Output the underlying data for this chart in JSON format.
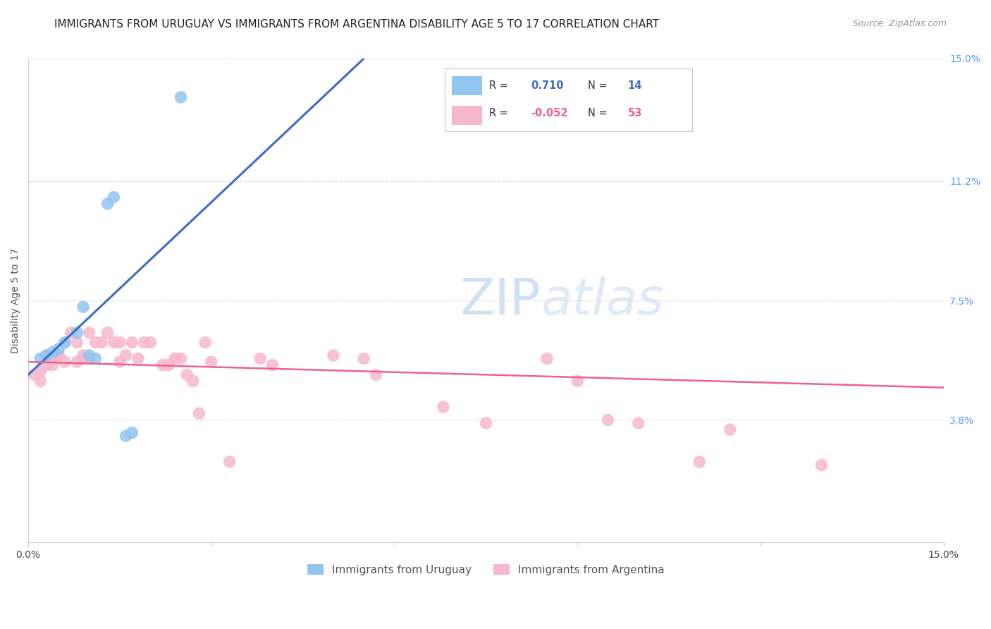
{
  "title": "IMMIGRANTS FROM URUGUAY VS IMMIGRANTS FROM ARGENTINA DISABILITY AGE 5 TO 17 CORRELATION CHART",
  "source": "Source: ZipAtlas.com",
  "ylabel": "Disability Age 5 to 17",
  "xlim": [
    0.0,
    0.15
  ],
  "ylim": [
    0.0,
    0.15
  ],
  "y_tick_labels_right": [
    "15.0%",
    "11.2%",
    "7.5%",
    "3.8%"
  ],
  "y_tick_positions_right": [
    0.15,
    0.112,
    0.075,
    0.038
  ],
  "uruguay_color": "#92C5F0",
  "argentina_color": "#F7B8CC",
  "trend_uruguay_color": "#3A6BC9",
  "trend_argentina_color": "#F06090",
  "background_color": "#ffffff",
  "grid_color": "#DDDDDD",
  "uruguay_x": [
    0.002,
    0.003,
    0.004,
    0.005,
    0.006,
    0.008,
    0.009,
    0.01,
    0.011,
    0.013,
    0.014,
    0.016,
    0.017,
    0.025
  ],
  "uruguay_y": [
    0.057,
    0.058,
    0.059,
    0.06,
    0.062,
    0.065,
    0.073,
    0.058,
    0.057,
    0.105,
    0.107,
    0.033,
    0.034,
    0.138
  ],
  "argentina_x": [
    0.001,
    0.002,
    0.002,
    0.003,
    0.003,
    0.004,
    0.004,
    0.005,
    0.005,
    0.006,
    0.006,
    0.007,
    0.008,
    0.008,
    0.009,
    0.009,
    0.01,
    0.01,
    0.011,
    0.012,
    0.013,
    0.014,
    0.015,
    0.015,
    0.016,
    0.017,
    0.018,
    0.019,
    0.02,
    0.022,
    0.023,
    0.024,
    0.025,
    0.026,
    0.027,
    0.028,
    0.029,
    0.03,
    0.033,
    0.038,
    0.04,
    0.05,
    0.055,
    0.057,
    0.068,
    0.075,
    0.085,
    0.09,
    0.095,
    0.1,
    0.11,
    0.115,
    0.13
  ],
  "argentina_y": [
    0.052,
    0.05,
    0.053,
    0.055,
    0.058,
    0.055,
    0.057,
    0.057,
    0.058,
    0.056,
    0.062,
    0.065,
    0.056,
    0.062,
    0.057,
    0.058,
    0.065,
    0.057,
    0.062,
    0.062,
    0.065,
    0.062,
    0.056,
    0.062,
    0.058,
    0.062,
    0.057,
    0.062,
    0.062,
    0.055,
    0.055,
    0.057,
    0.057,
    0.052,
    0.05,
    0.04,
    0.062,
    0.056,
    0.025,
    0.057,
    0.055,
    0.058,
    0.057,
    0.052,
    0.042,
    0.037,
    0.057,
    0.05,
    0.038,
    0.037,
    0.025,
    0.035,
    0.024
  ],
  "trend_uy_x0": 0.0,
  "trend_uy_y0": 0.052,
  "trend_uy_x1": 0.055,
  "trend_uy_y1": 0.15,
  "trend_ar_x0": 0.0,
  "trend_ar_y0": 0.056,
  "trend_ar_x1": 0.15,
  "trend_ar_y1": 0.048,
  "marker_size": 160,
  "title_fontsize": 11,
  "axis_fontsize": 10,
  "legend_fontsize": 11,
  "watermark": "ZIPatlas",
  "watermark_fontsize": 52
}
